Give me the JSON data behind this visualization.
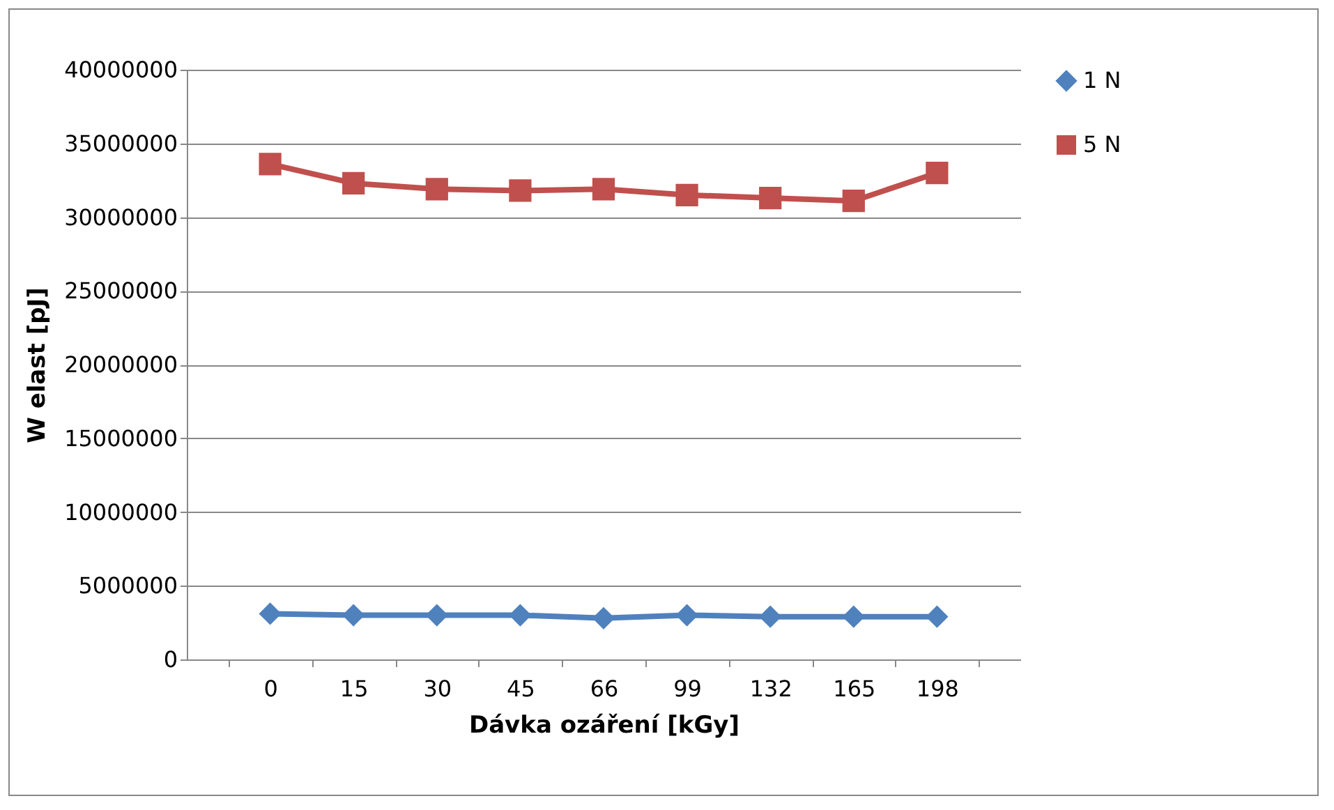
{
  "chart_data": {
    "type": "line",
    "xlabel": "Dávka ozáření [kGy]",
    "ylabel": "W elast  [pJ]",
    "categories": [
      "0",
      "15",
      "30",
      "45",
      "66",
      "99",
      "132",
      "165",
      "198"
    ],
    "series": [
      {
        "name": "1 N",
        "color": "#4f81bd",
        "marker": "diamond",
        "values": [
          3100000,
          3000000,
          3000000,
          3000000,
          2800000,
          3000000,
          2900000,
          2900000,
          2900000
        ]
      },
      {
        "name": "5 N",
        "color": "#c0504d",
        "marker": "square",
        "values": [
          33600000,
          32300000,
          31900000,
          31800000,
          31900000,
          31500000,
          31300000,
          31100000,
          33000000
        ]
      }
    ],
    "ylim": [
      0,
      40000000
    ],
    "yticks": [
      0,
      5000000,
      10000000,
      15000000,
      20000000,
      25000000,
      30000000,
      35000000,
      40000000
    ],
    "grid": "y",
    "legend": "right"
  }
}
